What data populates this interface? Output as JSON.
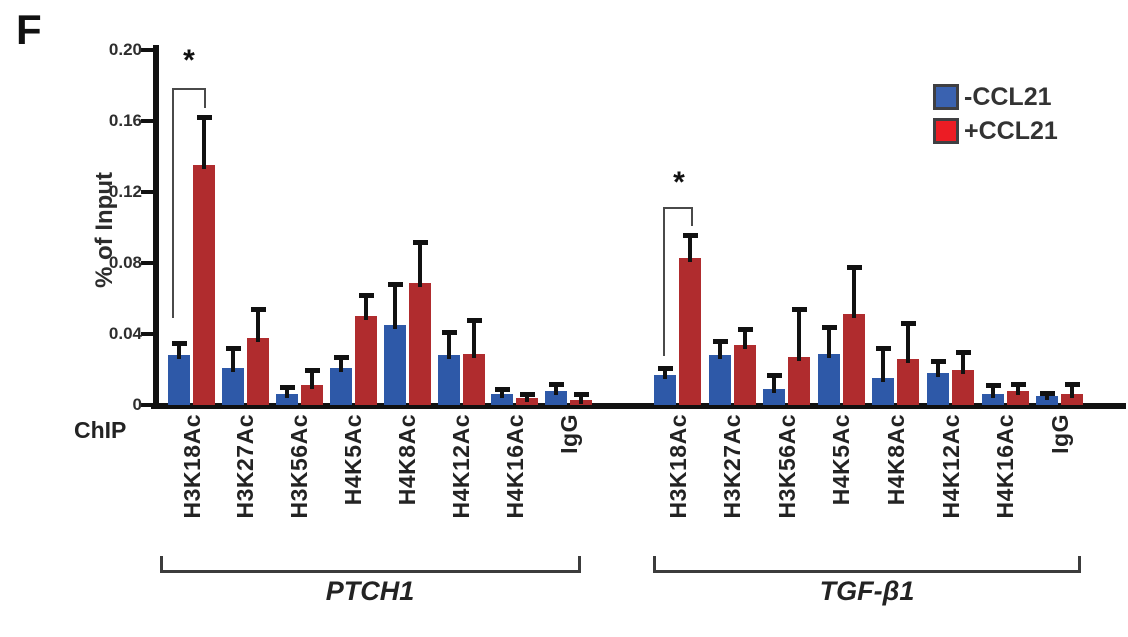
{
  "panel_label": "F",
  "chart_data": {
    "type": "bar",
    "title": "",
    "ylabel": "% of Input",
    "axis_prefix_label": "ChIP",
    "ylim": [
      0,
      0.2
    ],
    "ytick_values": [
      0.2,
      0.16,
      0.12,
      0.08,
      0.04,
      0
    ],
    "ytick_labels": [
      "0.20",
      "0.16",
      "0.12",
      "0.08",
      "0.04",
      "0"
    ],
    "grid": false,
    "legend_position": "top-right",
    "categories": [
      "H3K18Ac",
      "H3K27Ac",
      "H3K56Ac",
      "H4K5Ac",
      "H4K8Ac",
      "H4K12Ac",
      "H4K16Ac",
      "IgG"
    ],
    "legend": [
      {
        "label": "-CCL21",
        "color": "#3a62b0"
      },
      {
        "label": "+CCL21",
        "color": "#ec1c24"
      }
    ],
    "series_colors": {
      "-CCL21": "#2e59a8",
      "+CCL21": "#b02c2e"
    },
    "error_bar_color": "#111111",
    "groups": [
      {
        "name": "PTCH1",
        "series": [
          {
            "name": "-CCL21",
            "values": [
              0.028,
              0.021,
              0.006,
              0.021,
              0.045,
              0.028,
              0.006,
              0.008
            ],
            "errors": [
              0.007,
              0.011,
              0.004,
              0.006,
              0.023,
              0.013,
              0.003,
              0.004
            ]
          },
          {
            "name": "+CCL21",
            "values": [
              0.135,
              0.038,
              0.011,
              0.05,
              0.069,
              0.029,
              0.004,
              0.003
            ],
            "errors": [
              0.027,
              0.016,
              0.009,
              0.012,
              0.023,
              0.019,
              0.002,
              0.003
            ]
          }
        ],
        "significance": {
          "category": "H3K18Ac",
          "label": "*",
          "compares": [
            "-CCL21",
            "+CCL21"
          ]
        }
      },
      {
        "name": "TGF-β1",
        "series": [
          {
            "name": "-CCL21",
            "values": [
              0.017,
              0.028,
              0.009,
              0.029,
              0.015,
              0.018,
              0.006,
              0.005
            ],
            "errors": [
              0.004,
              0.008,
              0.008,
              0.015,
              0.017,
              0.007,
              0.005,
              0.002
            ]
          },
          {
            "name": "+CCL21",
            "values": [
              0.083,
              0.034,
              0.027,
              0.051,
              0.026,
              0.02,
              0.008,
              0.006
            ],
            "errors": [
              0.013,
              0.009,
              0.027,
              0.027,
              0.02,
              0.01,
              0.004,
              0.006
            ]
          }
        ],
        "significance": {
          "category": "H3K18Ac",
          "label": "*",
          "compares": [
            "-CCL21",
            "+CCL21"
          ]
        }
      }
    ]
  }
}
